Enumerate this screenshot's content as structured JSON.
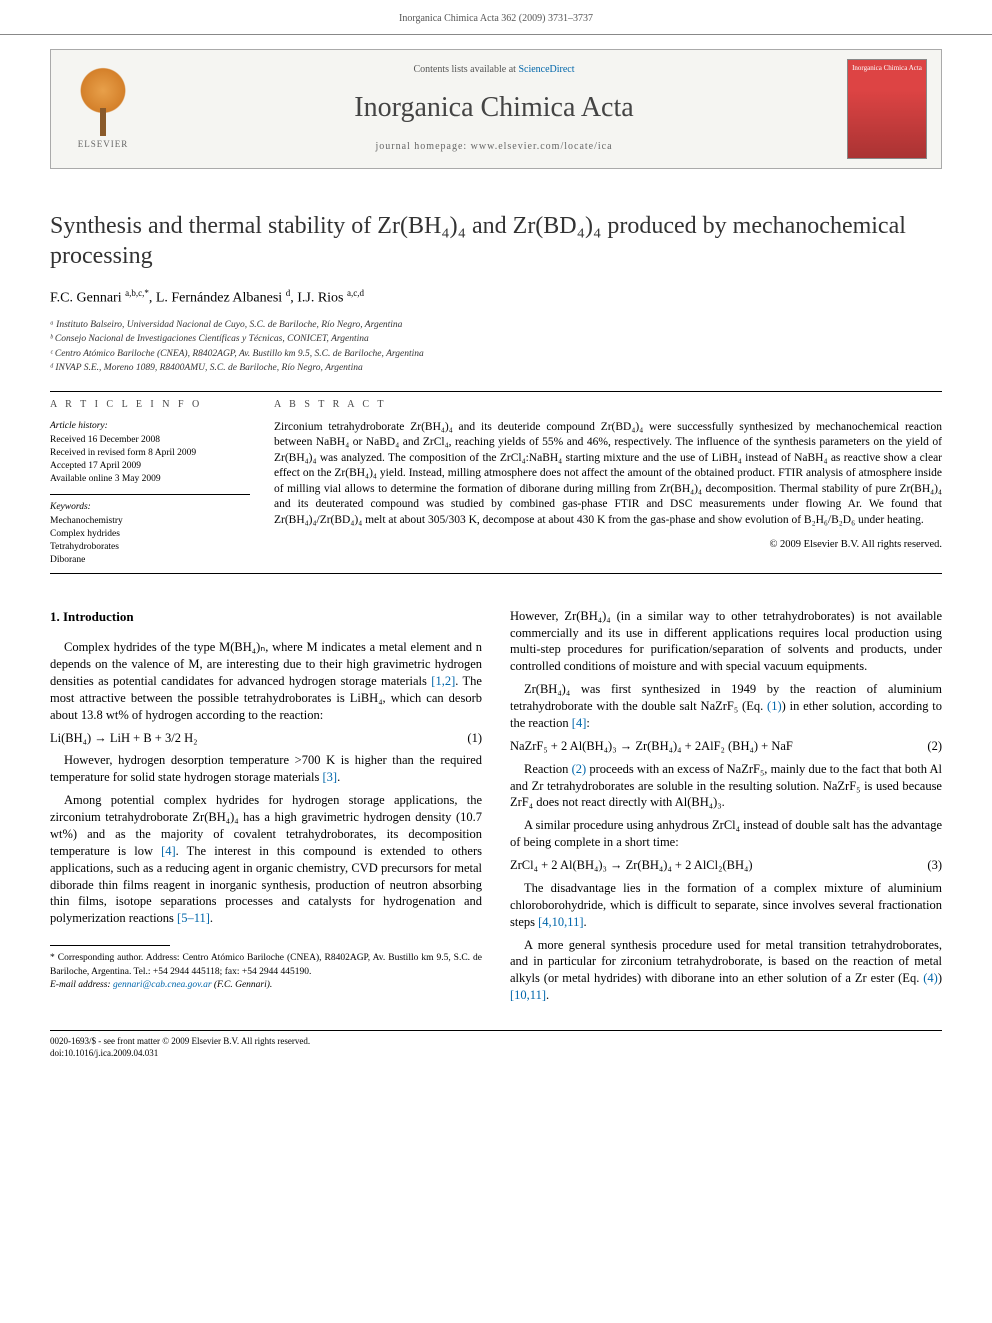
{
  "header": {
    "running": "Inorganica Chimica Acta 362 (2009) 3731–3737"
  },
  "journal_box": {
    "contents_prefix": "Contents lists available at ",
    "contents_link": "ScienceDirect",
    "journal": "Inorganica Chimica Acta",
    "homepage_label": "journal homepage: ",
    "homepage_url": "www.elsevier.com/locate/ica",
    "publisher": "ELSEVIER",
    "cover_label": "Inorganica Chimica Acta"
  },
  "title": "Synthesis and thermal stability of Zr(BH₄)₄ and Zr(BD₄)₄ produced by mechanochemical processing",
  "authors_html": "F.C. Gennari <sup>a,b,c,*</sup>, L. Fernández Albanesi <sup>d</sup>, I.J. Rios <sup>a,c,d</sup>",
  "affiliations": [
    "ᵃ Instituto Balseiro, Universidad Nacional de Cuyo, S.C. de Bariloche, Río Negro, Argentina",
    "ᵇ Consejo Nacional de Investigaciones Científicas y Técnicas, CONICET, Argentina",
    "ᶜ Centro Atómico Bariloche (CNEA), R8402AGP, Av. Bustillo km 9.5, S.C. de Bariloche, Argentina",
    "ᵈ INVAP S.E., Moreno 1089, R8400AMU, S.C. de Bariloche, Río Negro, Argentina"
  ],
  "article_info": {
    "head": "A R T I C L E   I N F O",
    "history_head": "Article history:",
    "history": [
      "Received 16 December 2008",
      "Received in revised form 8 April 2009",
      "Accepted 17 April 2009",
      "Available online 3 May 2009"
    ],
    "keywords_head": "Keywords:",
    "keywords": [
      "Mechanochemistry",
      "Complex hydrides",
      "Tetrahydroborates",
      "Diborane"
    ]
  },
  "abstract": {
    "head": "A B S T R A C T",
    "text": "Zirconium tetrahydroborate Zr(BH₄)₄ and its deuteride compound Zr(BD₄)₄ were successfully synthesized by mechanochemical reaction between NaBH₄ or NaBD₄ and ZrCl₄, reaching yields of 55% and 46%, respectively. The influence of the synthesis parameters on the yield of Zr(BH₄)₄ was analyzed. The composition of the ZrCl₄:NaBH₄ starting mixture and the use of LiBH₄ instead of NaBH₄ as reactive show a clear effect on the Zr(BH₄)₄ yield. Instead, milling atmosphere does not affect the amount of the obtained product. FTIR analysis of atmosphere inside of milling vial allows to determine the formation of diborane during milling from Zr(BH₄)₄ decomposition. Thermal stability of pure Zr(BH₄)₄ and its deuterated compound was studied by combined gas-phase FTIR and DSC measurements under flowing Ar. We found that Zr(BH₄)₄/Zr(BD₄)₄ melt at about 305/303 K, decompose at about 430 K from the gas-phase and show evolution of B₂H₆/B₂D₆ under heating.",
    "copyright": "© 2009 Elsevier B.V. All rights reserved."
  },
  "body": {
    "section1_head": "1. Introduction",
    "left": {
      "p1": "Complex hydrides of the type M(BH₄)ₙ, where M indicates a metal element and n depends on the valence of M, are interesting due to their high gravimetric hydrogen densities as potential candidates for advanced hydrogen storage materials [1,2]. The most attractive between the possible tetrahydroborates is LiBH₄, which can desorb about 13.8 wt% of hydrogen according to the reaction:",
      "eq1": "Li(BH₄) → LiH + B + 3/2 H₂",
      "eq1num": "(1)",
      "p2": "However, hydrogen desorption temperature >700 K is higher than the required temperature for solid state hydrogen storage materials [3].",
      "p3": "Among potential complex hydrides for hydrogen storage applications, the zirconium tetrahydroborate Zr(BH₄)₄ has a high gravimetric hydrogen density (10.7 wt%) and as the majority of covalent tetrahydroborates, its decomposition temperature is low [4]. The interest in this compound is extended to others applications, such as a reducing agent in organic chemistry, CVD precursors for metal diborade thin films reagent in inorganic synthesis, production of neutron absorbing thin films, isotope separations processes and catalysts for hydrogenation and polymerization reactions [5–11]."
    },
    "right": {
      "p1": "However, Zr(BH₄)₄ (in a similar way to other tetrahydroborates) is not available commercially and its use in different applications requires local production using multi-step procedures for purification/separation of solvents and products, under controlled conditions of moisture and with special vacuum equipments.",
      "p2": "Zr(BH₄)₄ was first synthesized in 1949 by the reaction of aluminium tetrahydroborate with the double salt NaZrF₅ (Eq. (1)) in ether solution, according to the reaction [4]:",
      "eq2": "NaZrF₅ + 2 Al(BH₄)₃ → Zr(BH₄)₄ + 2AlF₂ (BH₄) + NaF",
      "eq2num": "(2)",
      "p3": "Reaction (2) proceeds with an excess of NaZrF₅, mainly due to the fact that both Al and Zr tetrahydroborates are soluble in the resulting solution. NaZrF₅ is used because ZrF₄ does not react directly with Al(BH₄)₃.",
      "p4": "A similar procedure using anhydrous ZrCl₄ instead of double salt has the advantage of being complete in a short time:",
      "eq3": "ZrCl₄ + 2 Al(BH₄)₃ → Zr(BH₄)₄ + 2 AlCl₂(BH₄)",
      "eq3num": "(3)",
      "p5": "The disadvantage lies in the formation of a complex mixture of aluminium chloroborohydride, which is difficult to separate, since involves several fractionation steps [4,10,11].",
      "p6": "A more general synthesis procedure used for metal transition tetrahydroborates, and in particular for zirconium tetrahydroborate, is based on the reaction of metal alkyls (or metal hydrides) with diborane into an ether solution of a Zr ester (Eq. (4)) [10,11]."
    }
  },
  "corresponding": {
    "label": "* Corresponding author. Address: Centro Atómico Bariloche (CNEA), R8402AGP, Av. Bustillo km 9.5, S.C. de Bariloche, Argentina. Tel.: +54 2944 445118; fax: +54 2944 445190.",
    "email_label": "E-mail address: ",
    "email": "gennari@cab.cnea.gov.ar",
    "email_suffix": " (F.C. Gennari)."
  },
  "footer": {
    "left": "0020-1693/$ - see front matter © 2009 Elsevier B.V. All rights reserved.",
    "doi": "doi:10.1016/j.ica.2009.04.031"
  },
  "colors": {
    "link": "#0066aa",
    "text": "#000000",
    "muted": "#555555",
    "rule": "#000000",
    "box_bg": "#f5f5f2",
    "cover": "#d44"
  }
}
